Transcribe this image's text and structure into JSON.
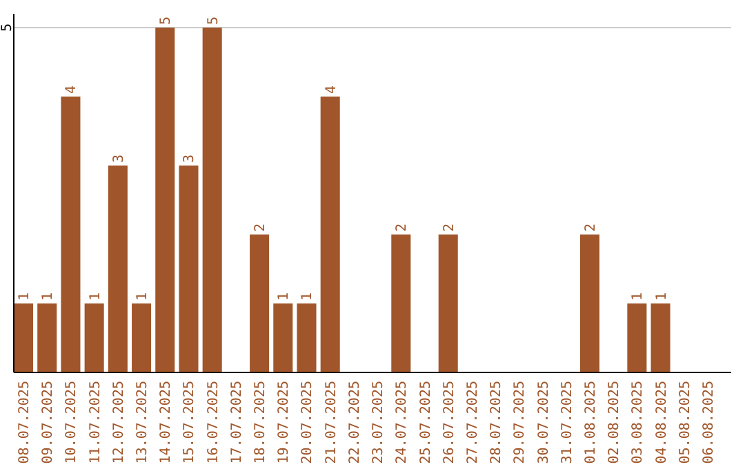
{
  "chart_data": {
    "type": "bar",
    "categories": [
      "08.07.2025",
      "09.07.2025",
      "10.07.2025",
      "11.07.2025",
      "12.07.2025",
      "13.07.2025",
      "14.07.2025",
      "15.07.2025",
      "16.07.2025",
      "17.07.2025",
      "18.07.2025",
      "19.07.2025",
      "20.07.2025",
      "21.07.2025",
      "22.07.2025",
      "23.07.2025",
      "24.07.2025",
      "25.07.2025",
      "26.07.2025",
      "27.07.2025",
      "28.07.2025",
      "29.07.2025",
      "30.07.2025",
      "31.07.2025",
      "01.08.2025",
      "02.08.2025",
      "03.08.2025",
      "04.08.2025",
      "05.08.2025",
      "06.08.2025"
    ],
    "values": [
      1,
      1,
      4,
      1,
      3,
      1,
      5,
      3,
      5,
      0,
      2,
      1,
      1,
      4,
      0,
      0,
      2,
      0,
      2,
      0,
      0,
      0,
      0,
      0,
      2,
      0,
      1,
      1,
      0,
      0
    ],
    "value_labels": [
      "1",
      "1",
      "4",
      "1",
      "3",
      "1",
      "5",
      "3",
      "5",
      null,
      "2",
      "1",
      "1",
      "4",
      null,
      null,
      "2",
      null,
      "2",
      null,
      null,
      null,
      null,
      null,
      "2",
      null,
      "1",
      "1",
      null,
      null
    ],
    "color": "#a0562a",
    "ylim": [
      0,
      5.2
    ],
    "yticks": [
      5
    ],
    "grid": "y"
  }
}
